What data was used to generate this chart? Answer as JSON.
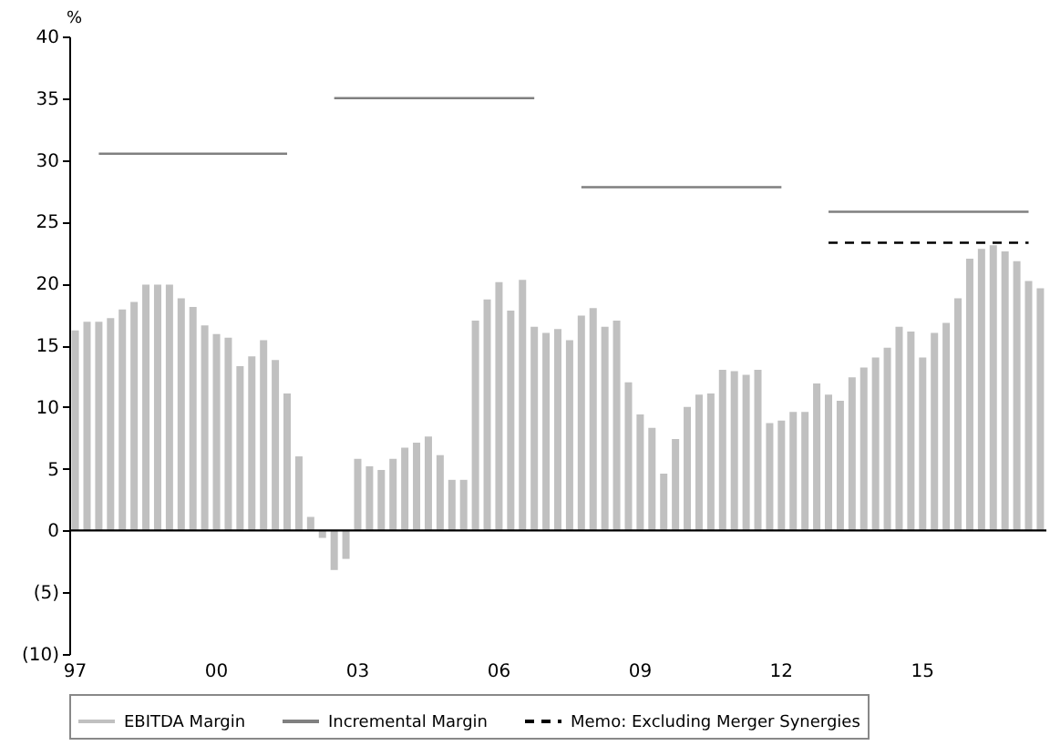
{
  "chart_data": {
    "type": "bar",
    "ylabel": "%",
    "categories": [
      "97",
      null,
      null,
      null,
      null,
      null,
      null,
      null,
      null,
      null,
      null,
      null,
      "00",
      null,
      null,
      null,
      null,
      null,
      null,
      null,
      null,
      null,
      null,
      null,
      "03",
      null,
      null,
      null,
      null,
      null,
      null,
      null,
      null,
      null,
      null,
      null,
      "06",
      null,
      null,
      null,
      null,
      null,
      null,
      null,
      null,
      null,
      null,
      null,
      "09",
      null,
      null,
      null,
      null,
      null,
      null,
      null,
      null,
      null,
      null,
      null,
      "12",
      null,
      null,
      null,
      null,
      null,
      null,
      null,
      null,
      null,
      null,
      null,
      "15",
      null,
      null,
      null,
      null,
      null,
      null,
      null,
      null,
      null,
      null
    ],
    "series": [
      {
        "name": "EBITDA Margin",
        "color": "#c0c0c0",
        "values": [
          16.2,
          16.9,
          16.9,
          17.2,
          17.9,
          18.5,
          19.9,
          19.9,
          19.9,
          18.8,
          18.1,
          16.6,
          15.9,
          15.6,
          13.3,
          14.1,
          15.4,
          13.8,
          11.1,
          6.0,
          1.1,
          -0.6,
          -3.2,
          -2.3,
          5.8,
          5.2,
          4.9,
          5.8,
          6.7,
          7.1,
          7.6,
          6.1,
          4.1,
          4.1,
          17.0,
          18.7,
          20.1,
          17.8,
          20.3,
          16.5,
          16.0,
          16.3,
          15.4,
          17.4,
          18.0,
          16.5,
          17.0,
          12.0,
          9.4,
          8.3,
          4.6,
          7.4,
          10.0,
          11.0,
          11.1,
          13.0,
          12.9,
          12.6,
          13.0,
          8.7,
          8.9,
          9.6,
          9.6,
          11.9,
          11.0,
          10.5,
          12.4,
          13.2,
          14.0,
          14.8,
          16.5,
          16.1,
          14.0,
          16.0,
          16.8,
          18.8,
          22.0,
          22.8,
          23.1,
          22.6,
          21.8,
          20.2,
          19.6
        ]
      },
      {
        "name": "Incremental Margin",
        "type": "line",
        "line_style": "solid",
        "color": "#808080",
        "values": [
          null,
          null,
          30.5,
          30.5,
          30.5,
          30.5,
          30.5,
          30.5,
          30.5,
          30.5,
          30.5,
          30.5,
          30.5,
          30.5,
          30.5,
          30.5,
          30.5,
          30.5,
          30.5,
          null,
          null,
          null,
          35,
          35,
          35,
          35,
          35,
          35,
          35,
          35,
          35,
          35,
          35,
          35,
          35,
          35,
          35,
          35,
          35,
          35,
          null,
          null,
          null,
          27.8,
          27.8,
          27.8,
          27.8,
          27.8,
          27.8,
          27.8,
          27.8,
          27.8,
          27.8,
          27.8,
          27.8,
          27.8,
          27.8,
          27.8,
          27.8,
          27.8,
          27.8,
          null,
          null,
          null,
          25.8,
          25.8,
          25.8,
          25.8,
          25.8,
          25.8,
          25.8,
          25.8,
          25.8,
          25.8,
          25.8,
          25.8,
          25.8,
          25.8,
          25.8,
          25.8,
          25.8,
          25.8,
          null
        ]
      },
      {
        "name": "Memo: Excluding Merger Synergies",
        "type": "line",
        "line_style": "dashed",
        "color": "#000000",
        "values": [
          null,
          null,
          null,
          null,
          null,
          null,
          null,
          null,
          null,
          null,
          null,
          null,
          null,
          null,
          null,
          null,
          null,
          null,
          null,
          null,
          null,
          null,
          null,
          null,
          null,
          null,
          null,
          null,
          null,
          null,
          null,
          null,
          null,
          null,
          null,
          null,
          null,
          null,
          null,
          null,
          null,
          null,
          null,
          null,
          null,
          null,
          null,
          null,
          null,
          null,
          null,
          null,
          null,
          null,
          null,
          null,
          null,
          null,
          null,
          null,
          null,
          null,
          null,
          null,
          23.3,
          23.3,
          23.3,
          23.3,
          23.3,
          23.3,
          23.3,
          23.3,
          23.3,
          23.3,
          23.3,
          23.3,
          23.3,
          23.3,
          23.3,
          23.3,
          23.3,
          23.3,
          null
        ]
      }
    ],
    "ylim": [
      -10,
      40
    ],
    "yticks": [
      {
        "value": -10,
        "label": "(10)"
      },
      {
        "value": -5,
        "label": "(5)"
      },
      0,
      5,
      10,
      15,
      20,
      25,
      30,
      35,
      40
    ],
    "ref_lines": [
      {
        "axis": "y",
        "value": 0,
        "color": "#000000"
      }
    ],
    "legend": "bottom"
  }
}
